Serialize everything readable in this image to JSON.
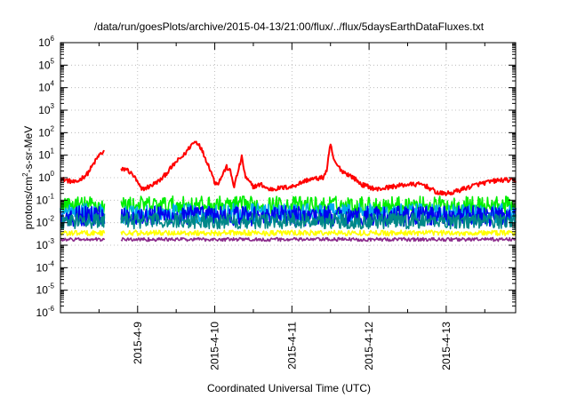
{
  "chart_data": {
    "type": "line",
    "title": "/data/run/goesPlots/archive/2015-04-13/21:00/flux/../flux/5daysEarthDataFluxes.txt",
    "xlabel": "Coordinated Universal Time (UTC)",
    "ylabel_parts": [
      "protons/cm",
      "2",
      "-s-sr-MeV"
    ],
    "x_tick_labels": [
      "2015-4-9",
      "2015-4-10",
      "2015-4-11",
      "2015-4-12",
      "2015-4-13"
    ],
    "x_ticks_day": [
      1,
      2,
      3,
      4,
      5
    ],
    "xlim_day": [
      0,
      5.9
    ],
    "y_scale": "log",
    "ylim_exp": [
      -6,
      6
    ],
    "y_tick_exponents": [
      -6,
      -5,
      -4,
      -3,
      -2,
      -1,
      0,
      1,
      2,
      3,
      4,
      5,
      6
    ],
    "y_tick_base": "10",
    "grid": true,
    "gap_day": [
      0.58,
      0.78
    ],
    "series": [
      {
        "color": "#ff0000",
        "noise": 0.1,
        "points": [
          [
            0,
            0.9
          ],
          [
            0.2,
            0.6
          ],
          [
            0.35,
            1.5
          ],
          [
            0.5,
            10
          ],
          [
            0.57,
            15
          ],
          [
            0.65,
            18
          ],
          [
            0.75,
            2
          ],
          [
            0.85,
            2.5
          ],
          [
            0.95,
            1.2
          ],
          [
            1.05,
            0.3
          ],
          [
            1.15,
            0.4
          ],
          [
            1.3,
            0.8
          ],
          [
            1.4,
            2
          ],
          [
            1.5,
            5
          ],
          [
            1.6,
            10
          ],
          [
            1.7,
            30
          ],
          [
            1.75,
            40
          ],
          [
            1.8,
            30
          ],
          [
            1.9,
            5
          ],
          [
            1.95,
            2
          ],
          [
            2.0,
            0.6
          ],
          [
            2.05,
            0.6
          ],
          [
            2.15,
            3
          ],
          [
            2.2,
            2
          ],
          [
            2.25,
            0.4
          ],
          [
            2.35,
            8
          ],
          [
            2.4,
            1
          ],
          [
            2.5,
            0.4
          ],
          [
            2.6,
            0.5
          ],
          [
            2.7,
            0.3
          ],
          [
            3.0,
            0.4
          ],
          [
            3.2,
            0.8
          ],
          [
            3.4,
            1
          ],
          [
            3.45,
            2
          ],
          [
            3.5,
            30
          ],
          [
            3.55,
            5
          ],
          [
            3.65,
            2
          ],
          [
            3.8,
            1
          ],
          [
            3.9,
            0.5
          ],
          [
            4.1,
            0.3
          ],
          [
            4.3,
            0.4
          ],
          [
            4.5,
            0.5
          ],
          [
            4.7,
            0.5
          ],
          [
            4.9,
            0.2
          ],
          [
            5.05,
            0.2
          ],
          [
            5.2,
            0.3
          ],
          [
            5.4,
            0.5
          ],
          [
            5.6,
            0.7
          ],
          [
            5.75,
            0.8
          ],
          [
            5.9,
            0.7
          ]
        ]
      },
      {
        "color": "#00ee00",
        "noise": 0.4,
        "points": [
          [
            0,
            0.06
          ],
          [
            5.9,
            0.06
          ]
        ]
      },
      {
        "color": "#00aaee",
        "noise": 0.45,
        "points": [
          [
            0,
            0.025
          ],
          [
            5.9,
            0.025
          ]
        ]
      },
      {
        "color": "#0000ee",
        "noise": 0.45,
        "points": [
          [
            0,
            0.02
          ],
          [
            5.9,
            0.02
          ]
        ]
      },
      {
        "color": "#008888",
        "noise": 0.35,
        "points": [
          [
            0,
            0.012
          ],
          [
            5.9,
            0.012
          ]
        ]
      },
      {
        "color": "#ffff00",
        "noise": 0.12,
        "points": [
          [
            0,
            0.0035
          ],
          [
            5.9,
            0.0035
          ]
        ]
      },
      {
        "color": "#8b2a8b",
        "noise": 0.08,
        "points": [
          [
            0,
            0.0018
          ],
          [
            5.9,
            0.0018
          ]
        ]
      }
    ]
  }
}
